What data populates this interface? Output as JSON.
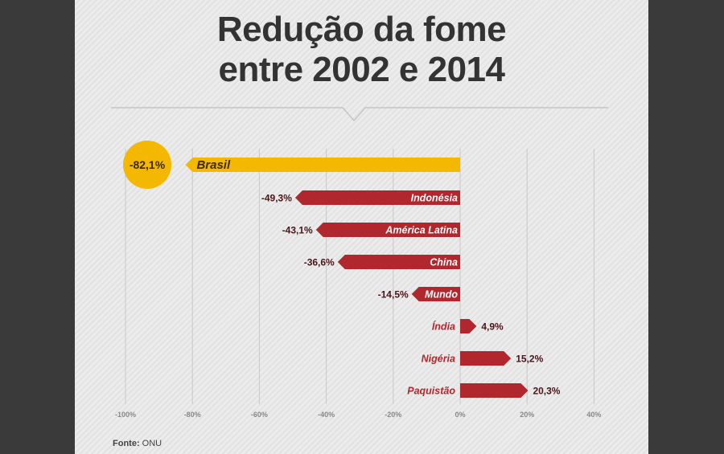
{
  "title_lines": [
    "Redução da fome",
    "entre 2002 e 2014"
  ],
  "source": {
    "label": "Fonte:",
    "value": "ONU"
  },
  "colors": {
    "highlight": "#f5b800",
    "bar": "#b0282e",
    "label_dark": "#4a1417",
    "grid": "#c8c8c8",
    "title": "#333333"
  },
  "chart_data": {
    "type": "bar",
    "orientation": "horizontal",
    "title": "Redução da fome entre 2002 e 2014",
    "xlim": [
      -100,
      40
    ],
    "xticks": [
      -100,
      -80,
      -60,
      -40,
      -20,
      0,
      20,
      40
    ],
    "xtick_labels": [
      "-100%",
      "-80%",
      "-60%",
      "-40%",
      "-20%",
      "0%",
      "20%",
      "40%"
    ],
    "grid": true,
    "categories": [
      "Brasil",
      "Indonésia",
      "América Latina",
      "China",
      "Mundo",
      "Índia",
      "Nigéria",
      "Paquistão"
    ],
    "values": [
      -82.1,
      -49.3,
      -43.1,
      -36.6,
      -14.5,
      4.9,
      15.2,
      20.3
    ],
    "value_labels": [
      "-82,1%",
      "-49,3%",
      "-43,1%",
      "-36,6%",
      "-14,5%",
      "4,9%",
      "15,2%",
      "20,3%"
    ],
    "highlight": "Brasil"
  }
}
